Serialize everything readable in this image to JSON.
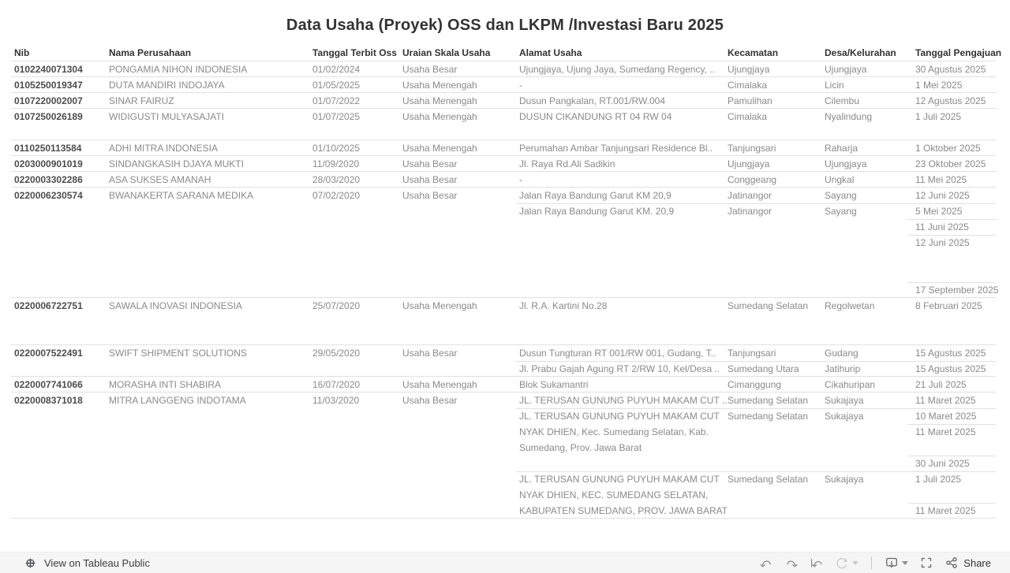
{
  "title": "Data Usaha (Proyek) OSS dan LKPM /Investasi Baru 2025",
  "colors": {
    "header_text": "#333333",
    "cell_text": "#8a8a8a",
    "nib_text": "#4d4d4d",
    "divider": "#e1e1e1",
    "footer_bg": "#f5f5f5",
    "icon": "#8f8f8f",
    "icon_disabled": "#c9c9c9",
    "icon_dark": "#666666"
  },
  "table": {
    "columns": [
      "Nib",
      "Nama Perusahaan",
      "Tanggal Terbit Oss",
      "Uraian Skala Usaha",
      "Alamat Usaha",
      "Kecamatan",
      "Desa/Kelurahan",
      "Tanggal Pengajuan"
    ],
    "rows": [
      {
        "nib": "0102240071304",
        "nama": "PONGAMIA NIHON INDONESIA",
        "terbit": "01/02/2024",
        "skala": "Usaha Besar",
        "entries": [
          {
            "alamat": [
              "Ujungjaya, Ujung Jaya, Sumedang Regency, .."
            ],
            "kecamatan": "Ujungjaya",
            "desa": "Ujungjaya",
            "dates": [
              "30 Agustus 2025"
            ]
          }
        ]
      },
      {
        "nib": "0105250019347",
        "nama": "DUTA MANDIRI INDOJAYA",
        "terbit": "01/05/2025",
        "skala": "Usaha Menengah",
        "entries": [
          {
            "alamat": [
              "-"
            ],
            "kecamatan": "Cimalaka",
            "desa": "Licin",
            "dates": [
              "1 Mei 2025"
            ]
          }
        ]
      },
      {
        "nib": "0107220002007",
        "nama": "SINAR FAIRUZ",
        "terbit": "01/07/2022",
        "skala": "Usaha Menengah",
        "entries": [
          {
            "alamat": [
              "Dusun Pangkalan, RT.001/RW.004"
            ],
            "kecamatan": "Pamulihan",
            "desa": "Cilembu",
            "dates": [
              "12 Agustus 2025"
            ]
          }
        ]
      },
      {
        "nib": "0107250026189",
        "nama": "WIDIGUSTI MULYASAJATI",
        "terbit": "01/07/2025",
        "skala": "Usaha Menengah",
        "entries": [
          {
            "alamat": [
              "DUSUN CIKANDUNG RT 04 RW 04"
            ],
            "kecamatan": "Cimalaka",
            "desa": "Nyalindung",
            "dates": [
              "1 Juli 2025",
              ""
            ]
          }
        ]
      },
      {
        "nib": "0110250113584",
        "nama": "ADHI MITRA INDONESIA",
        "terbit": "01/10/2025",
        "skala": "Usaha Menengah",
        "entries": [
          {
            "alamat": [
              "Perumahan Ambar Tanjungsari Residence Bl.."
            ],
            "kecamatan": "Tanjungsari",
            "desa": "Raharja",
            "dates": [
              "1 Oktober 2025"
            ]
          }
        ]
      },
      {
        "nib": "0203000901019",
        "nama": "SINDANGKASIH DJAYA MUKTI",
        "terbit": "11/09/2020",
        "skala": "Usaha Besar",
        "entries": [
          {
            "alamat": [
              "Jl. Raya Rd.Ali Sadikin"
            ],
            "kecamatan": "Ujungjaya",
            "desa": "Ujungjaya",
            "dates": [
              "23 Oktober 2025"
            ]
          }
        ]
      },
      {
        "nib": "0220003302286",
        "nama": "ASA SUKSES AMANAH",
        "terbit": "28/03/2020",
        "skala": "Usaha Besar",
        "entries": [
          {
            "alamat": [
              "-"
            ],
            "kecamatan": "Conggeang",
            "desa": "Ungkal",
            "dates": [
              "11 Mei 2025"
            ]
          }
        ]
      },
      {
        "nib": "0220006230574",
        "nama": "BWANAKERTA SARANA MEDIKA",
        "terbit": "07/02/2020",
        "skala": "Usaha Besar",
        "entries": [
          {
            "alamat": [
              "Jalan Raya Bandung Garut KM 20,9"
            ],
            "kecamatan": "Jatinangor",
            "desa": "Sayang",
            "dates": [
              "12 Juni 2025"
            ]
          },
          {
            "alamat": [
              "Jalan Raya Bandung Garut KM. 20,9"
            ],
            "kecamatan": "Jatinangor",
            "desa": "Sayang",
            "dates": [
              "5 Mei 2025",
              "11 Juni 2025",
              "12 Juni 2025",
              "",
              "",
              "17 September 2025"
            ]
          }
        ]
      },
      {
        "nib": "0220006722751",
        "nama": "SAWALA INOVASI INDONESIA",
        "terbit": "25/07/2020",
        "skala": "Usaha Menengah",
        "entries": [
          {
            "alamat": [
              "Jl. R.A. Kartini No.28"
            ],
            "kecamatan": "Sumedang Selatan",
            "desa": "Regolwetan",
            "dates": [
              "8 Februari 2025",
              "",
              ""
            ]
          }
        ]
      },
      {
        "nib": "0220007522491",
        "nama": "SWIFT SHIPMENT SOLUTIONS",
        "terbit": "29/05/2020",
        "skala": "Usaha Besar",
        "entries": [
          {
            "alamat": [
              "Dusun Tungturan RT 001/RW 001, Gudang, T.."
            ],
            "kecamatan": "Tanjungsari",
            "desa": "Gudang",
            "dates": [
              "15 Agustus 2025"
            ]
          },
          {
            "alamat": [
              "Jl. Prabu Gajah Agung RT 2/RW 10, Kel/Desa .."
            ],
            "kecamatan": "Sumedang Utara",
            "desa": "Jatihurip",
            "dates": [
              "15 Agustus 2025"
            ]
          }
        ]
      },
      {
        "nib": "0220007741066",
        "nama": "MORASHA INTI SHABIRA",
        "terbit": "16/07/2020",
        "skala": "Usaha Menengah",
        "entries": [
          {
            "alamat": [
              "Blok Sukamantri"
            ],
            "kecamatan": "Cimanggung",
            "desa": "Cikahuripan",
            "dates": [
              "21 Juli 2025"
            ]
          }
        ]
      },
      {
        "nib": "0220008371018",
        "nama": "MITRA LANGGENG INDOTAMA",
        "terbit": "11/03/2020",
        "skala": "Usaha Besar",
        "entries": [
          {
            "alamat": [
              "JL. TERUSAN GUNUNG PUYUH MAKAM CUT .."
            ],
            "kecamatan": "Sumedang Selatan",
            "desa": "Sukajaya",
            "dates": [
              "11 Maret 2025"
            ]
          },
          {
            "alamat": [
              "JL. TERUSAN GUNUNG PUYUH MAKAM CUT",
              "NYAK DHIEN, Kec. Sumedang Selatan, Kab.",
              "Sumedang, Prov. Jawa Barat"
            ],
            "kecamatan": "Sumedang Selatan",
            "desa": "Sukajaya",
            "dates": [
              "10 Maret 2025",
              "11 Maret 2025",
              "",
              "30 Juni 2025"
            ]
          },
          {
            "alamat": [
              "JL. TERUSAN GUNUNG PUYUH MAKAM CUT",
              "NYAK DHIEN, KEC. SUMEDANG SELATAN,",
              "KABUPATEN SUMEDANG, PROV. JAWA BARAT"
            ],
            "kecamatan": "Sumedang Selatan",
            "desa": "Sukajaya",
            "dates": [
              "1 Juli 2025",
              "",
              "11 Maret 2025"
            ]
          }
        ]
      }
    ]
  },
  "footer": {
    "view_label": "View on Tableau Public",
    "share_label": "Share",
    "icons": [
      "tableau-logo",
      "undo",
      "redo",
      "revert",
      "refresh",
      "download",
      "fullscreen",
      "share"
    ]
  }
}
